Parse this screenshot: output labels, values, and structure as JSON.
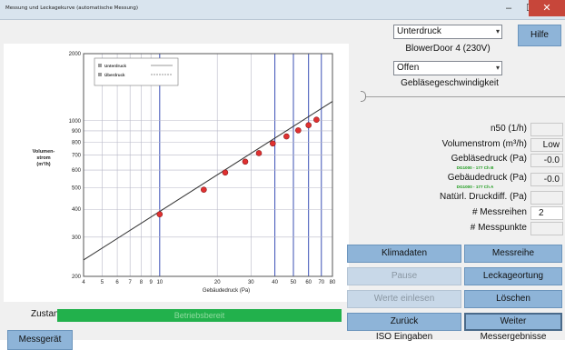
{
  "window": {
    "title": "Messung und Leckagekurve (automatische Messung)",
    "minimize": "–",
    "maximize": "☐",
    "close": "✕"
  },
  "controls": {
    "mode_select": "Unterdruck",
    "device_label": "BlowerDoor 4 (230V)",
    "state_select": "Offen",
    "fan_speed_label": "Gebläsegeschwindigkeit",
    "help_button": "Hilfe"
  },
  "readouts": {
    "n50_label": "n50 (1/h)",
    "volumenstrom_label": "Volumenstrom (m³/h)",
    "volumenstrom_value": "Low",
    "geblaesedruck_label": "Gebläsedruck (Pa)",
    "geblaesedruck_sub": "DG1000 - 177 Ch B",
    "geblaesedruck_value": "-0.0",
    "gebaeudedruck_label": "Gebäudedruck (Pa)",
    "gebaeudedruck_sub": "DG1000 - 177 Ch A",
    "gebaeudedruck_value": "-0.0",
    "natuerl_label": "Natürl. Druckdiff. (Pa)",
    "messreihen_label": "# Messreihen",
    "messreihen_value": "2",
    "messpunkte_label": "# Messpunkte"
  },
  "buttons": {
    "klimadaten": "Klimadaten",
    "messreihe": "Messreihe",
    "pause": "Pause",
    "leckageortung": "Leckageortung",
    "werte_einlesen": "Werte einlesen",
    "loeschen": "Löschen",
    "zurueck": "Zurück",
    "weiter": "Weiter",
    "iso_eingaben": "ISO Eingaben",
    "messergebnisse": "Messergebnisse",
    "messgeraet": "Messgerät"
  },
  "status": {
    "label": "Zustand",
    "value": "Betriebsbereit"
  },
  "colors": {
    "accent_button": "#8eb4d8",
    "status_green": "#22b14c",
    "point_red": "#e03030",
    "grid_blue": "#3a4fb5"
  },
  "chart_data": {
    "type": "scatter",
    "x_scale": "log",
    "y_scale": "log",
    "xlabel": "Gebäudedruck (Pa)",
    "ylabel": "Volumen-strom (m³/h)",
    "xlim": [
      4,
      80
    ],
    "ylim": [
      200,
      2000
    ],
    "x_ticks": [
      4,
      5,
      6,
      7,
      8,
      9,
      10,
      20,
      30,
      40,
      50,
      60,
      70,
      80
    ],
    "y_ticks": [
      200,
      300,
      400,
      500,
      600,
      700,
      800,
      900,
      1000,
      2000
    ],
    "legend": [
      {
        "name": "Unterdruck"
      },
      {
        "name": "Überdruck"
      }
    ],
    "legend_placement": "top-left",
    "blue_gridlines_x": [
      10,
      40,
      50,
      60,
      70
    ],
    "series": [
      {
        "name": "Unterdruck",
        "points": [
          {
            "x": 10,
            "y": 380
          },
          {
            "x": 17,
            "y": 490
          },
          {
            "x": 22,
            "y": 585
          },
          {
            "x": 28,
            "y": 655
          },
          {
            "x": 33,
            "y": 715
          },
          {
            "x": 39,
            "y": 790
          },
          {
            "x": 46,
            "y": 850
          },
          {
            "x": 53,
            "y": 905
          },
          {
            "x": 60,
            "y": 955
          },
          {
            "x": 66,
            "y": 1010
          }
        ]
      }
    ],
    "fit_line": {
      "x": [
        4,
        80
      ],
      "y": [
        237,
        1220
      ]
    }
  }
}
